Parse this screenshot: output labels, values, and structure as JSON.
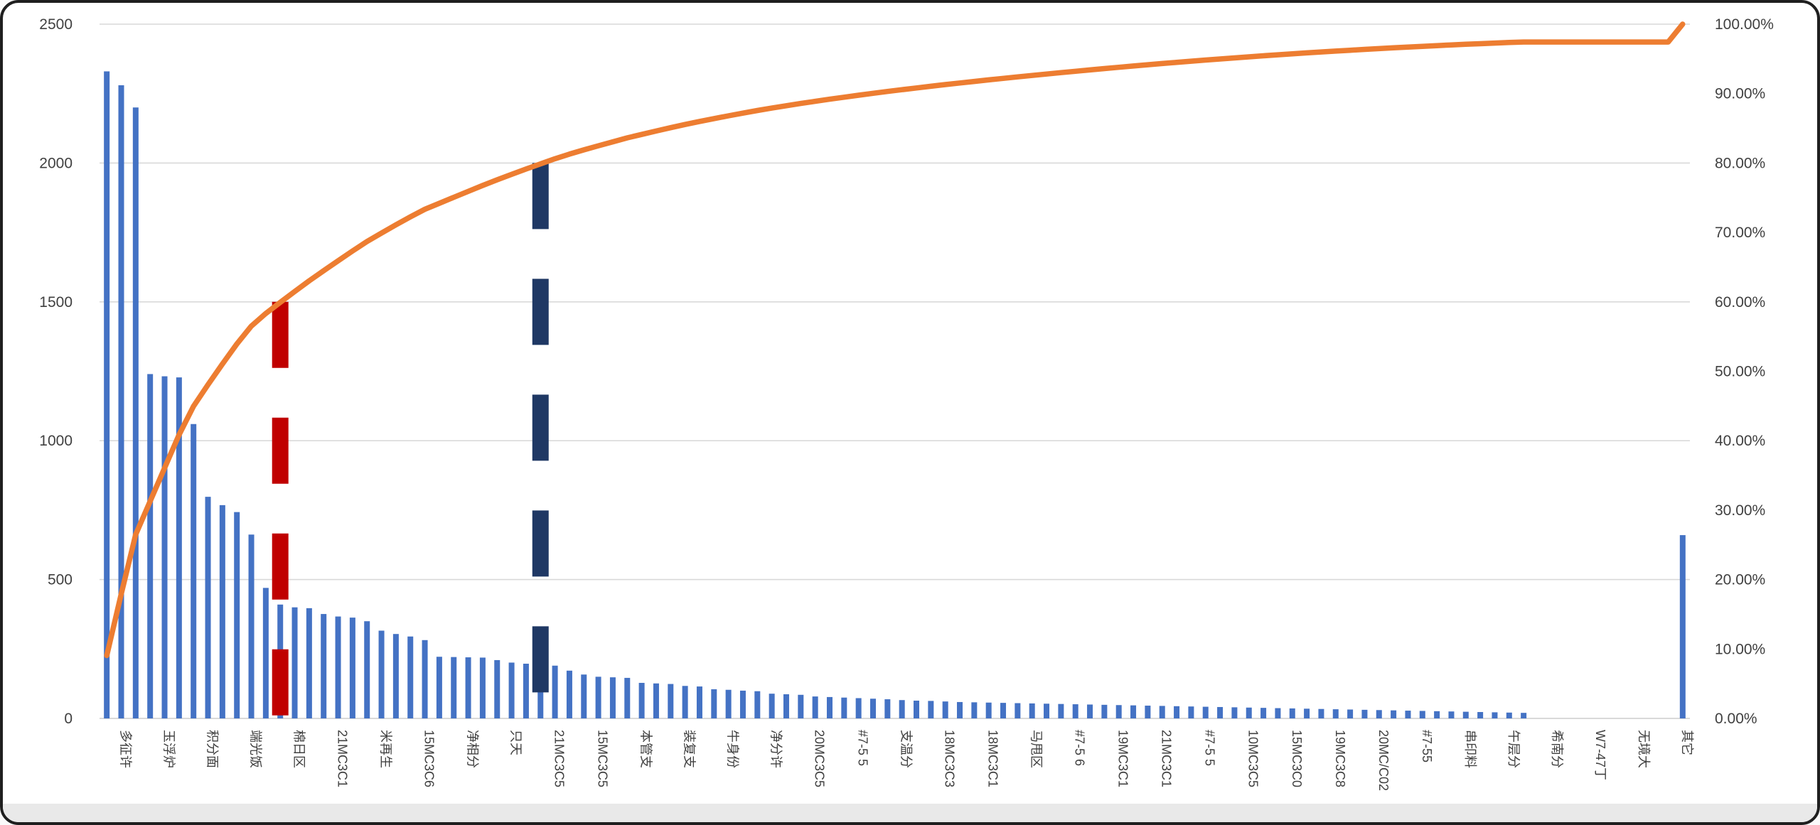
{
  "window": {
    "canvas_background": "#ffffff",
    "frame_border_color": "#1f1f1f",
    "footer_strip_color": "#e9e9e9"
  },
  "chart_data": {
    "type": "bar",
    "subtype": "pareto-combo-bar-with-cumulative-line",
    "title": "",
    "xlabel": "",
    "ylabel": "",
    "n_categories": 110,
    "values": [
      2330,
      2280,
      2200,
      1240,
      1232,
      1228,
      1060,
      798,
      768,
      743,
      662,
      470,
      410,
      400,
      397,
      376,
      367,
      363,
      350,
      316,
      304,
      295,
      282,
      222,
      221,
      220,
      219,
      210,
      201,
      197,
      192,
      190,
      172,
      158,
      150,
      148,
      146,
      128,
      126,
      124,
      117,
      115,
      105,
      103,
      100,
      98,
      89,
      87,
      85,
      79,
      77,
      75,
      73,
      71,
      69,
      66,
      64,
      63,
      61,
      59,
      58,
      57,
      56,
      55,
      54,
      53,
      52,
      51,
      50,
      49,
      48,
      47,
      46,
      45,
      44,
      43,
      42,
      41,
      40,
      39,
      38,
      37,
      36,
      35,
      34,
      33,
      32,
      31,
      30,
      29,
      28,
      27,
      26,
      25,
      24,
      23,
      22,
      21,
      20,
      0,
      0,
      0,
      0,
      0,
      0,
      0,
      0,
      0,
      0,
      660
    ],
    "x_label_interval": 3,
    "x_label_first_index": 1,
    "x_labels_visible": [
      "多征许",
      "玉浮炉",
      "积分面",
      "端光饭",
      "棉日区",
      "21MC3C1",
      "米再生",
      "15MC3C6",
      "净相分",
      "只天",
      "21MC3C5",
      "15MC3C5",
      "本管支",
      "装复支",
      "牛身份",
      "净分许",
      "20MC3C5",
      "#7-5 5",
      "支温分",
      "18MC3C3",
      "18MC3C1",
      "马甩区",
      "#7-5 6",
      "19MC3C1",
      "21MC3C1",
      "#7-5 5",
      "10MC3C5",
      "15MC3C0",
      "19MC3C8",
      "20MC/C02",
      "#7-55",
      "串印料",
      "午层分",
      "希南分",
      "W7-47丁",
      "无境大",
      "其它"
    ],
    "y_axis_left": {
      "tick_labels": [
        "0",
        "500",
        "1000",
        "1500",
        "2000",
        "2500"
      ],
      "min": 0,
      "max": 2500
    },
    "y_axis_right": {
      "tick_labels": [
        "0.00%",
        "10.00%",
        "20.00%",
        "30.00%",
        "40.00%",
        "50.00%",
        "60.00%",
        "70.00%",
        "80.00%",
        "90.00%",
        "100.00%"
      ],
      "min_percent": 0,
      "max_percent": 100
    },
    "grid": true,
    "legend": "none",
    "bar_color": "#4472C4",
    "cumulative_line_color": "#ED7D31",
    "gridline_color": "#D9D9D9",
    "axis_text_color": "#404040",
    "annotations": [
      {
        "kind": "vertical-dashed-line",
        "category_index": 12,
        "top_percent": 60,
        "color": "#C00000"
      },
      {
        "kind": "vertical-dashed-line",
        "category_index": 30,
        "top_percent": 80,
        "color": "#1F3864"
      }
    ]
  }
}
